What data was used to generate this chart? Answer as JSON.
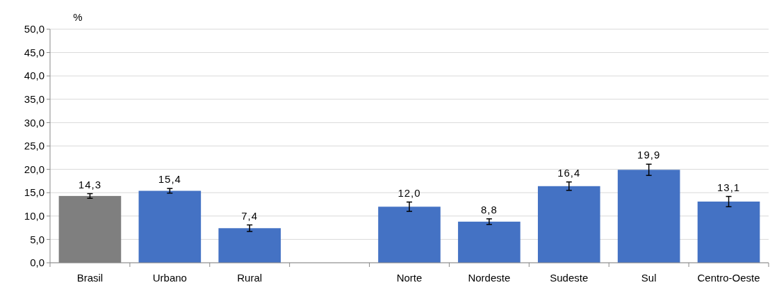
{
  "chart_data": {
    "type": "bar",
    "ylabel": "%",
    "categories": [
      "Brasil",
      "Urbano",
      "Rural",
      null,
      "Norte",
      "Nordeste",
      "Sudeste",
      "Sul",
      "Centro-Oeste"
    ],
    "values": [
      14.3,
      15.4,
      7.4,
      null,
      12.0,
      8.8,
      16.4,
      19.9,
      13.1
    ],
    "colors": [
      "#7f7f7f",
      "#4472c4",
      "#4472c4",
      null,
      "#4472c4",
      "#4472c4",
      "#4472c4",
      "#4472c4",
      "#4472c4"
    ],
    "errors": [
      0.5,
      0.5,
      0.7,
      null,
      1.0,
      0.6,
      0.9,
      1.2,
      1.1
    ],
    "value_labels": [
      "14,3",
      "15,4",
      "7,4",
      null,
      "12,0",
      "8,8",
      "16,4",
      "19,9",
      "13,1"
    ],
    "ylim": [
      0,
      50
    ],
    "yticks": [
      {
        "value": 0,
        "label": "0,0"
      },
      {
        "value": 5,
        "label": "5,0"
      },
      {
        "value": 10,
        "label": "10,0"
      },
      {
        "value": 15,
        "label": "15,0"
      },
      {
        "value": 20,
        "label": "20,0"
      },
      {
        "value": 25,
        "label": "25,0"
      },
      {
        "value": 30,
        "label": "30,0"
      },
      {
        "value": 35,
        "label": "35,0"
      },
      {
        "value": 40,
        "label": "40,0"
      },
      {
        "value": 45,
        "label": "45,0"
      },
      {
        "value": 50,
        "label": "50,0"
      }
    ],
    "grid": "y"
  }
}
